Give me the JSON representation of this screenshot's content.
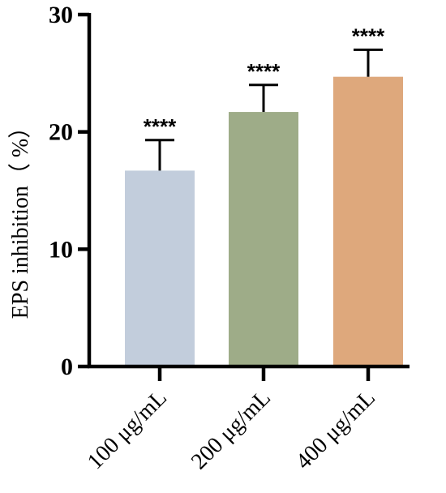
{
  "chart_data": {
    "type": "bar",
    "title": "",
    "xlabel": "",
    "ylabel": "EPS inhibition（ %）",
    "categories": [
      "100 μg/mL",
      "200 μg/mL",
      "400 μg/mL"
    ],
    "values": [
      16.7,
      21.7,
      24.7
    ],
    "error": [
      2.6,
      2.3,
      2.3
    ],
    "significance": [
      "****",
      "****",
      "****"
    ],
    "colors": [
      "#c2cddc",
      "#9eac88",
      "#dea87c"
    ],
    "ylim": [
      0,
      30
    ],
    "yticks": [
      0,
      10,
      20,
      30
    ],
    "grid": false,
    "legend": "none"
  }
}
